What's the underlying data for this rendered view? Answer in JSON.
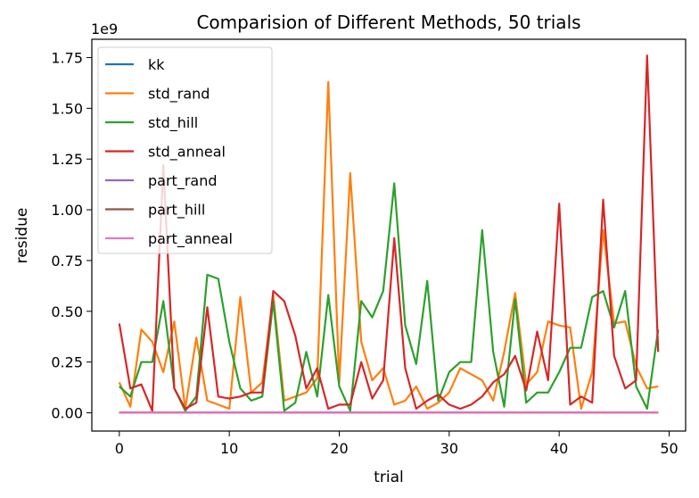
{
  "chart_data": {
    "type": "line",
    "title": "Comparision of Different Methods, 50 trials",
    "xlabel": "trial",
    "ylabel": "residue",
    "y_scale_label": "1e9",
    "xlim": [
      -2.5,
      51.5
    ],
    "ylim": [
      -0.09,
      1.84
    ],
    "x_ticks": [
      0,
      10,
      20,
      30,
      40,
      50
    ],
    "y_ticks": [
      0.0,
      0.25,
      0.5,
      0.75,
      1.0,
      1.25,
      1.5,
      1.75
    ],
    "x_tick_labels": [
      "0",
      "10",
      "20",
      "30",
      "40",
      "50"
    ],
    "y_tick_labels": [
      "0.00",
      "0.25",
      "0.50",
      "0.75",
      "1.00",
      "1.25",
      "1.50",
      "1.75"
    ],
    "legend_position": "top-left",
    "grid": false,
    "x": [
      0,
      1,
      2,
      3,
      4,
      5,
      6,
      7,
      8,
      9,
      10,
      11,
      12,
      13,
      14,
      15,
      16,
      17,
      18,
      19,
      20,
      21,
      22,
      23,
      24,
      25,
      26,
      27,
      28,
      29,
      30,
      31,
      32,
      33,
      34,
      35,
      36,
      37,
      38,
      39,
      40,
      41,
      42,
      43,
      44,
      45,
      46,
      47,
      48,
      49
    ],
    "series": [
      {
        "name": "kk",
        "color": "#1f77b4",
        "values": [
          0.001,
          0.001,
          0.001,
          0.001,
          0.001,
          0.001,
          0.001,
          0.001,
          0.001,
          0.001,
          0.001,
          0.001,
          0.001,
          0.001,
          0.001,
          0.001,
          0.001,
          0.001,
          0.001,
          0.001,
          0.001,
          0.001,
          0.001,
          0.001,
          0.001,
          0.001,
          0.001,
          0.001,
          0.001,
          0.001,
          0.001,
          0.001,
          0.001,
          0.001,
          0.001,
          0.001,
          0.001,
          0.001,
          0.001,
          0.001,
          0.001,
          0.001,
          0.001,
          0.001,
          0.001,
          0.001,
          0.001,
          0.001,
          0.001,
          0.001
        ]
      },
      {
        "name": "std_rand",
        "color": "#ff7f0e",
        "values": [
          0.15,
          0.03,
          0.41,
          0.35,
          0.2,
          0.45,
          0.02,
          0.37,
          0.06,
          0.04,
          0.02,
          0.57,
          0.1,
          0.15,
          0.58,
          0.06,
          0.08,
          0.1,
          0.17,
          1.63,
          0.15,
          1.18,
          0.35,
          0.16,
          0.22,
          0.04,
          0.06,
          0.13,
          0.02,
          0.05,
          0.1,
          0.22,
          0.19,
          0.16,
          0.06,
          0.3,
          0.59,
          0.14,
          0.2,
          0.45,
          0.43,
          0.42,
          0.02,
          0.2,
          0.9,
          0.44,
          0.45,
          0.23,
          0.12,
          0.13
        ]
      },
      {
        "name": "std_hill",
        "color": "#2ca02c",
        "values": [
          0.13,
          0.08,
          0.25,
          0.25,
          0.55,
          0.12,
          0.01,
          0.08,
          0.68,
          0.66,
          0.35,
          0.12,
          0.06,
          0.08,
          0.55,
          0.01,
          0.05,
          0.3,
          0.08,
          0.58,
          0.13,
          0.01,
          0.55,
          0.47,
          0.6,
          1.13,
          0.43,
          0.24,
          0.65,
          0.06,
          0.2,
          0.25,
          0.25,
          0.9,
          0.3,
          0.03,
          0.56,
          0.05,
          0.1,
          0.1,
          0.2,
          0.32,
          0.32,
          0.57,
          0.6,
          0.42,
          0.6,
          0.13,
          0.02,
          0.41
        ]
      },
      {
        "name": "std_anneal",
        "color": "#d62728",
        "values": [
          0.44,
          0.12,
          0.14,
          0.01,
          1.22,
          0.12,
          0.02,
          0.05,
          0.52,
          0.08,
          0.07,
          0.08,
          0.1,
          0.1,
          0.6,
          0.55,
          0.38,
          0.12,
          0.22,
          0.02,
          0.04,
          0.04,
          0.25,
          0.07,
          0.16,
          0.86,
          0.22,
          0.02,
          0.06,
          0.09,
          0.04,
          0.02,
          0.04,
          0.08,
          0.15,
          0.19,
          0.28,
          0.11,
          0.4,
          0.16,
          1.03,
          0.04,
          0.08,
          0.05,
          1.05,
          0.28,
          0.12,
          0.16,
          1.76,
          0.3
        ]
      },
      {
        "name": "part_rand",
        "color": "#9467bd",
        "values": [
          0.002,
          0.002,
          0.002,
          0.002,
          0.002,
          0.002,
          0.002,
          0.002,
          0.002,
          0.002,
          0.002,
          0.002,
          0.002,
          0.002,
          0.002,
          0.002,
          0.002,
          0.002,
          0.002,
          0.002,
          0.002,
          0.002,
          0.002,
          0.002,
          0.002,
          0.002,
          0.002,
          0.002,
          0.002,
          0.002,
          0.002,
          0.002,
          0.002,
          0.002,
          0.002,
          0.002,
          0.002,
          0.002,
          0.002,
          0.002,
          0.002,
          0.002,
          0.002,
          0.002,
          0.002,
          0.002,
          0.002,
          0.002,
          0.002,
          0.002
        ]
      },
      {
        "name": "part_hill",
        "color": "#8c564b",
        "values": [
          0.001,
          0.001,
          0.001,
          0.001,
          0.001,
          0.001,
          0.001,
          0.001,
          0.001,
          0.001,
          0.001,
          0.001,
          0.001,
          0.001,
          0.001,
          0.001,
          0.001,
          0.001,
          0.001,
          0.001,
          0.001,
          0.001,
          0.001,
          0.001,
          0.001,
          0.001,
          0.001,
          0.001,
          0.001,
          0.001,
          0.001,
          0.001,
          0.001,
          0.001,
          0.001,
          0.001,
          0.001,
          0.001,
          0.001,
          0.001,
          0.001,
          0.001,
          0.001,
          0.001,
          0.001,
          0.001,
          0.001,
          0.001,
          0.001,
          0.001
        ]
      },
      {
        "name": "part_anneal",
        "color": "#e377c2",
        "values": [
          0.001,
          0.001,
          0.001,
          0.001,
          0.001,
          0.001,
          0.001,
          0.001,
          0.001,
          0.001,
          0.001,
          0.001,
          0.001,
          0.001,
          0.001,
          0.001,
          0.001,
          0.001,
          0.001,
          0.001,
          0.001,
          0.001,
          0.001,
          0.001,
          0.001,
          0.001,
          0.001,
          0.001,
          0.001,
          0.001,
          0.001,
          0.001,
          0.001,
          0.001,
          0.001,
          0.001,
          0.001,
          0.001,
          0.001,
          0.001,
          0.001,
          0.001,
          0.001,
          0.001,
          0.001,
          0.001,
          0.001,
          0.001,
          0.001,
          0.001
        ]
      }
    ]
  }
}
